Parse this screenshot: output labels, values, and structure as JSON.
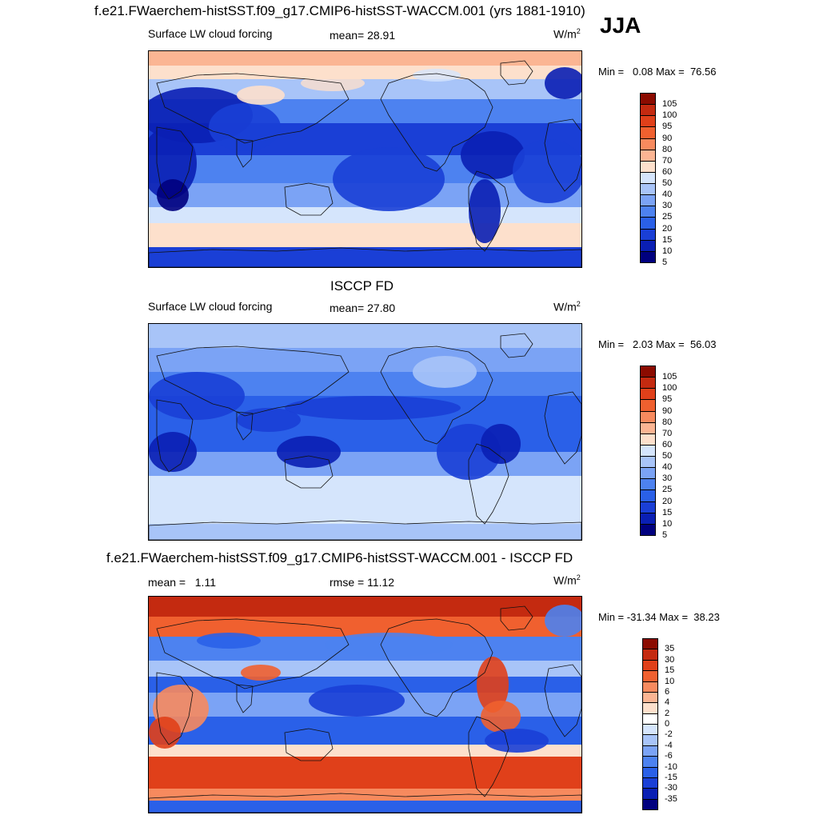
{
  "header": {
    "title": "f.e21.FWaerchem-histSST.f09_g17.CMIP6-histSST-WACCM.001 (yrs 1881-1910)",
    "season": "JJA"
  },
  "colors": {
    "abs_scale": [
      "#00007f",
      "#0a1fb4",
      "#1a3fd6",
      "#2a60e8",
      "#4d82f0",
      "#7ba3f5",
      "#a8c4f8",
      "#d5e5fc",
      "#fde0cc",
      "#fbb593",
      "#f78a5e",
      "#f0602f",
      "#e0401a",
      "#c42a10",
      "#8b0b00"
    ],
    "diff_scale": [
      "#00007f",
      "#0a1fb4",
      "#1a3fd6",
      "#2a60e8",
      "#4d82f0",
      "#7ba3f5",
      "#a8c4f8",
      "#d5e5fc",
      "#ffffff",
      "#fde0cc",
      "#fbb593",
      "#f78a5e",
      "#f0602f",
      "#e0401a",
      "#c42a10",
      "#8b0b00"
    ]
  },
  "chart_data": [
    {
      "type": "heatmap",
      "subtitle": "Surface LW cloud forcing",
      "stat_label": "mean=",
      "stat_value": "28.91",
      "units": "W/m",
      "units_sup": "2",
      "min_label": "Min =",
      "min_value": "0.08",
      "max_label": "Max =",
      "max_value": "76.56",
      "levels": [
        "105",
        "100",
        "95",
        "90",
        "80",
        "70",
        "60",
        "50",
        "40",
        "30",
        "25",
        "20",
        "15",
        "10",
        "5"
      ]
    },
    {
      "type": "heatmap",
      "title": "ISCCP FD",
      "subtitle": "Surface LW cloud forcing",
      "stat_label": "mean=",
      "stat_value": "27.80",
      "units": "W/m",
      "units_sup": "2",
      "min_label": "Min =",
      "min_value": "2.03",
      "max_label": "Max =",
      "max_value": "56.03",
      "levels": [
        "105",
        "100",
        "95",
        "90",
        "80",
        "70",
        "60",
        "50",
        "40",
        "30",
        "25",
        "20",
        "15",
        "10",
        "5"
      ]
    },
    {
      "type": "heatmap",
      "title": "f.e21.FWaerchem-histSST.f09_g17.CMIP6-histSST-WACCM.001 - ISCCP FD",
      "stat_label": "mean =",
      "stat_value": "1.11",
      "stat2_label": "rmse =",
      "stat2_value": "11.12",
      "units": "W/m",
      "units_sup": "2",
      "min_label": "Min =",
      "min_value": "-31.34",
      "max_label": "Max =",
      "max_value": "38.23",
      "levels": [
        "35",
        "30",
        "15",
        "10",
        "6",
        "4",
        "2",
        "0",
        "-2",
        "-4",
        "-6",
        "-10",
        "-15",
        "-30",
        "-35"
      ]
    }
  ]
}
